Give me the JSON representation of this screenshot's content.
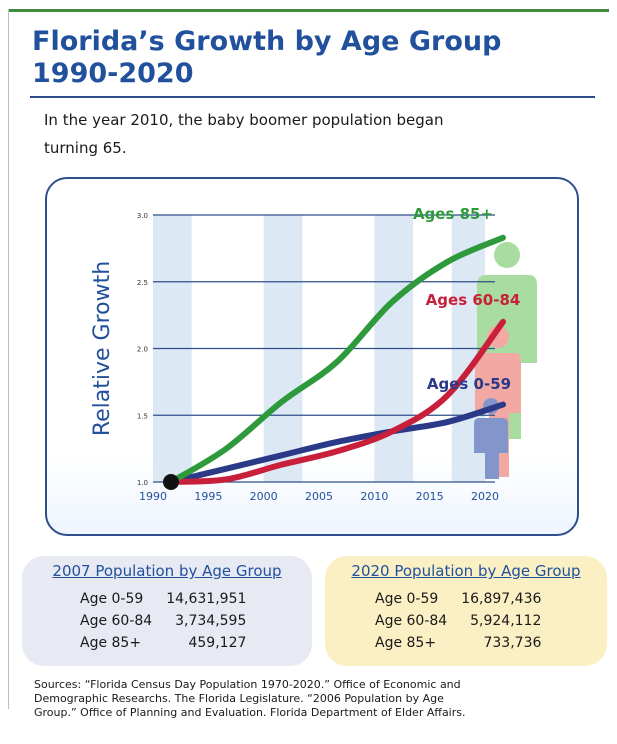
{
  "header": {
    "title_line1": "Florida’s Growth by Age Group",
    "title_line2": "1990-2020",
    "intro_line1": "In the year 2010, the baby boomer population began",
    "intro_line2": "turning 65."
  },
  "chart_data": {
    "type": "line",
    "title": "",
    "xlabel": "",
    "ylabel": "Relative Growth",
    "xlim": [
      1990,
      2020
    ],
    "ylim": [
      1.0,
      3.0
    ],
    "x_ticks": [
      "1990",
      "1995",
      "2000",
      "2005",
      "2010",
      "2015",
      "2020"
    ],
    "y_ticks": [
      "1.0",
      "1.5",
      "2.0",
      "2.5",
      "3.0"
    ],
    "grid": "horizontal",
    "series": [
      {
        "name": "Ages 85+",
        "color": "#2e9a3c",
        "x": [
          1990,
          1995,
          2000,
          2005,
          2010,
          2015,
          2020
        ],
        "y": [
          1.0,
          1.25,
          1.6,
          1.9,
          2.35,
          2.65,
          2.83
        ]
      },
      {
        "name": "Ages 60-84",
        "color": "#c81f3a",
        "x": [
          1990,
          1995,
          2000,
          2005,
          2010,
          2015,
          2020
        ],
        "y": [
          1.0,
          1.02,
          1.13,
          1.23,
          1.38,
          1.65,
          2.2
        ]
      },
      {
        "name": "Ages 0-59",
        "color": "#2b3a88",
        "x": [
          1990,
          1995,
          2000,
          2005,
          2010,
          2015,
          2020
        ],
        "y": [
          1.0,
          1.1,
          1.2,
          1.3,
          1.38,
          1.45,
          1.58
        ]
      }
    ],
    "figure_colors": {
      "ages_85_plus": "#a8dca0",
      "ages_60_84": "#f2a9a3",
      "ages_0_59": "#8296cc"
    }
  },
  "stats_2007": {
    "title": "2007 Population by Age Group",
    "rows": [
      {
        "label": "Age 0-59",
        "value": "14,631,951"
      },
      {
        "label": "Age 60-84",
        "value": "3,734,595"
      },
      {
        "label": "Age 85+",
        "value": "459,127"
      }
    ]
  },
  "stats_2020": {
    "title": "2020 Population by Age Group",
    "rows": [
      {
        "label": "Age 0-59",
        "value": "16,897,436"
      },
      {
        "label": "Age 60-84",
        "value": "5,924,112"
      },
      {
        "label": "Age 85+",
        "value": "733,736"
      }
    ]
  },
  "sources": {
    "line1": "Sources: “Florida Census Day Population 1970-2020.” Office of Economic and",
    "line2": "Demographic Researchs. The Florida Legislature. “2006 Population by Age",
    "line3": "Group.” Office of Planning and Evaluation. Florida Department of Elder Affairs."
  }
}
